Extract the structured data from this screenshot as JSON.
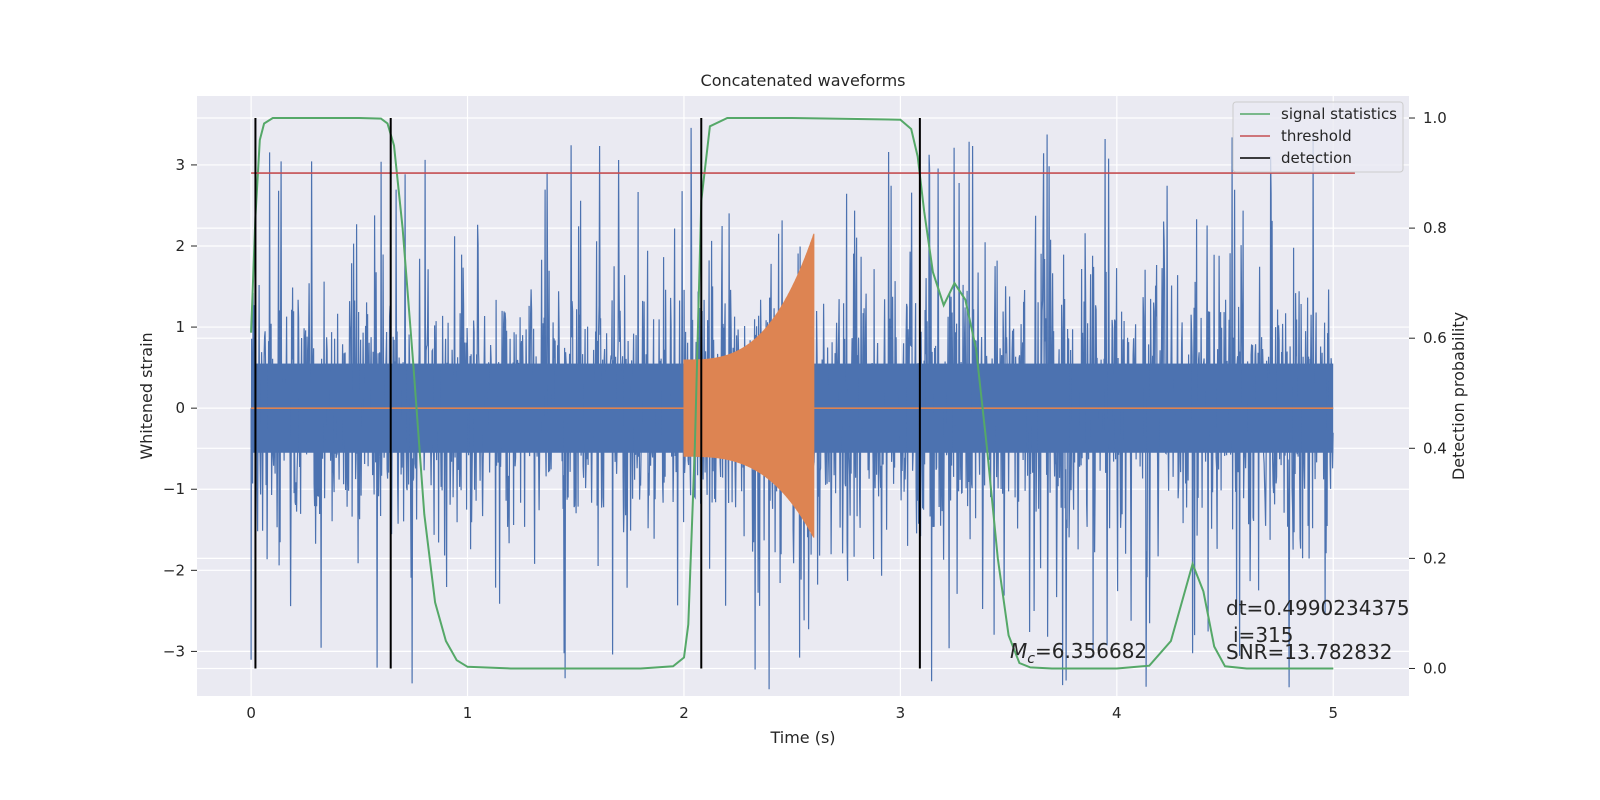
{
  "chart_data": {
    "type": "line",
    "title": "Concatenated waveforms",
    "xlabel": "Time (s)",
    "ylabel": "Whitened strain",
    "ylabel_right": "Detection probability",
    "xlim": [
      -0.25,
      5.35
    ],
    "ylim": [
      -3.55,
      3.85
    ],
    "ylim_right": [
      -0.05,
      1.04
    ],
    "xticks": [
      0,
      1,
      2,
      3,
      4,
      5
    ],
    "yticks": [
      -3,
      -2,
      -1,
      0,
      1,
      2,
      3
    ],
    "yticks_right": [
      0.0,
      0.2,
      0.4,
      0.6,
      0.8,
      1.0
    ],
    "grid": true,
    "legend_position": "top-right",
    "colors": {
      "background": "#EAEAF2",
      "noise": "#4C72B0",
      "signal": "#DD8452",
      "signal_statistics": "#55A868",
      "threshold": "#C44E52",
      "detection": "#000000"
    },
    "series": [
      {
        "name": "signal statistics",
        "axis": "right",
        "x": [
          0.0,
          0.02,
          0.04,
          0.06,
          0.1,
          0.2,
          0.5,
          0.6,
          0.63,
          0.66,
          0.7,
          0.75,
          0.8,
          0.85,
          0.9,
          0.95,
          1.0,
          1.2,
          1.5,
          1.8,
          1.95,
          2.0,
          2.02,
          2.05,
          2.08,
          2.12,
          2.2,
          2.5,
          3.0,
          3.05,
          3.08,
          3.11,
          3.15,
          3.2,
          3.25,
          3.3,
          3.35,
          3.4,
          3.45,
          3.5,
          3.55,
          3.6,
          3.7,
          4.0,
          4.15,
          4.25,
          4.3,
          4.35,
          4.4,
          4.45,
          4.5,
          4.6,
          5.0
        ],
        "y": [
          0.61,
          0.82,
          0.96,
          0.99,
          1.0,
          1.0,
          1.0,
          0.999,
          0.99,
          0.95,
          0.8,
          0.55,
          0.28,
          0.12,
          0.05,
          0.015,
          0.003,
          0.0,
          0.0,
          0.0,
          0.004,
          0.02,
          0.08,
          0.4,
          0.85,
          0.985,
          1.0,
          1.0,
          0.997,
          0.98,
          0.93,
          0.83,
          0.72,
          0.66,
          0.7,
          0.67,
          0.58,
          0.4,
          0.2,
          0.06,
          0.01,
          0.002,
          0.0,
          0.0,
          0.005,
          0.05,
          0.12,
          0.19,
          0.14,
          0.04,
          0.004,
          0.0,
          0.0
        ]
      },
      {
        "name": "threshold",
        "axis": "right",
        "x": [
          0.0,
          5.1
        ],
        "y": [
          0.9,
          0.9
        ]
      },
      {
        "name": "detection",
        "axis": "right",
        "type": "vlines",
        "x": [
          0.02,
          0.645,
          2.08,
          3.09
        ],
        "y_range": [
          0.0,
          1.0
        ]
      }
    ],
    "noise_series": {
      "axis": "left",
      "x_range": [
        0.0,
        5.0
      ],
      "typical_amplitude": 0.9,
      "peak_amplitude": 3.5
    },
    "injected_signal": {
      "axis": "left",
      "x_range": [
        2.0,
        2.6
      ],
      "start_amplitude": 0.6,
      "end_amplitude_top": 2.15,
      "end_amplitude_bottom": -1.6
    },
    "annotations": {
      "mc_symbol": "M",
      "mc_subscript": "c",
      "mc_value": "=6.356682",
      "dt": "dt=0.4990234375",
      "index": "i=315",
      "snr": "SNR=13.782832"
    }
  }
}
